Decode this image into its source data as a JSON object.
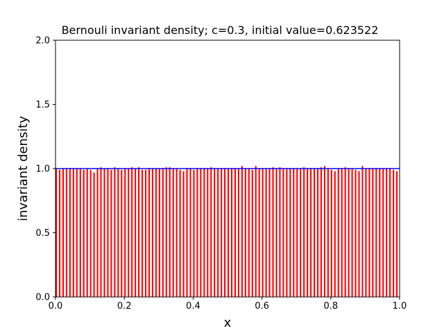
{
  "chart_data": {
    "type": "bar",
    "title": "Bernouli invariant density; c=0.3, initial value=0.623522",
    "xlabel": "x",
    "ylabel": "invariant density",
    "xlim": [
      0.0,
      1.0
    ],
    "ylim": [
      0.0,
      2.0
    ],
    "xticks": [
      "0.0",
      "0.2",
      "0.4",
      "0.6",
      "0.8",
      "1.0"
    ],
    "yticks": [
      "0.0",
      "0.5",
      "1.0",
      "1.5",
      "2.0"
    ],
    "grid": false,
    "bar_color": "#ff0000",
    "reference_line": {
      "y": 1.0,
      "color": "#0000ff"
    },
    "bins": 100,
    "values": [
      1.0,
      0.99,
      1.0,
      1.0,
      1.0,
      1.0,
      1.0,
      1.0,
      0.99,
      1.0,
      0.99,
      0.97,
      1.0,
      1.01,
      1.0,
      1.0,
      0.99,
      1.01,
      1.0,
      0.99,
      1.0,
      1.0,
      1.01,
      1.0,
      1.01,
      0.99,
      0.99,
      1.0,
      1.0,
      1.0,
      1.0,
      1.0,
      1.01,
      1.01,
      1.0,
      1.0,
      0.99,
      0.98,
      1.0,
      1.0,
      0.99,
      1.0,
      1.0,
      1.0,
      1.0,
      1.01,
      1.0,
      1.0,
      1.0,
      1.0,
      1.0,
      1.0,
      1.0,
      1.0,
      1.02,
      1.0,
      1.0,
      0.99,
      1.02,
      1.0,
      1.0,
      1.0,
      1.0,
      1.01,
      1.0,
      1.01,
      1.0,
      1.0,
      1.0,
      1.0,
      1.0,
      1.0,
      1.01,
      1.0,
      1.0,
      1.0,
      1.0,
      1.01,
      1.02,
      1.0,
      0.99,
      0.98,
      1.0,
      1.0,
      1.01,
      1.0,
      1.0,
      0.99,
      0.98,
      1.02,
      1.0,
      1.0,
      1.0,
      1.0,
      1.0,
      1.0,
      1.0,
      1.0,
      0.99,
      0.98
    ]
  }
}
